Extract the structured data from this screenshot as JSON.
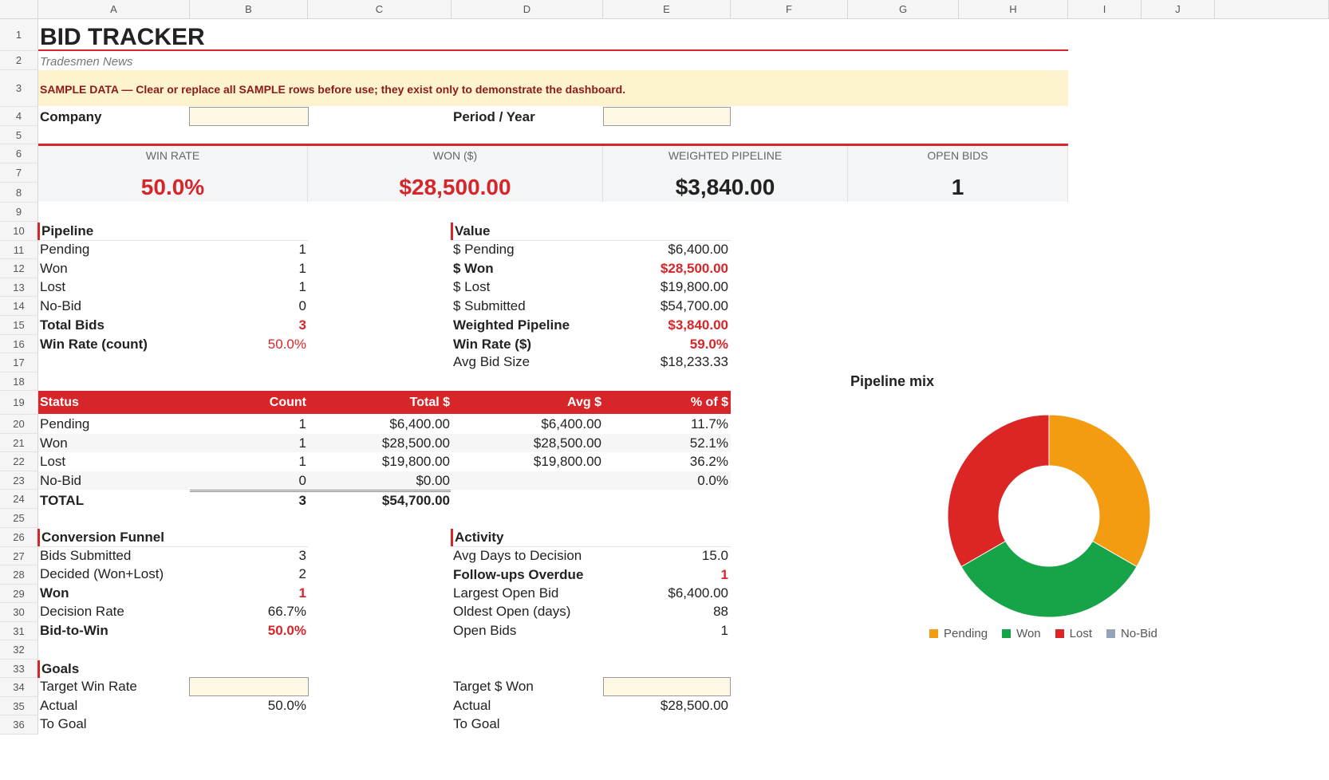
{
  "columns": [
    "A",
    "B",
    "C",
    "D",
    "E",
    "F",
    "G",
    "H",
    "I",
    "J"
  ],
  "rows": [
    "1",
    "2",
    "3",
    "4",
    "5",
    "6",
    "7",
    "8",
    "9",
    "10",
    "11",
    "12",
    "13",
    "14",
    "15",
    "16",
    "17",
    "18",
    "19",
    "20",
    "21",
    "22",
    "23",
    "24",
    "25",
    "26",
    "27",
    "28",
    "29",
    "30",
    "31",
    "32",
    "33",
    "34",
    "35",
    "36"
  ],
  "title": "BID TRACKER",
  "subtitle": "Tradesmen News",
  "banner": "SAMPLE DATA — Clear or replace all SAMPLE rows before use; they exist only to demonstrate the dashboard.",
  "company_label": "Company",
  "period_label": "Period / Year",
  "kpis": [
    {
      "label": "WIN RATE",
      "value": "50.0%"
    },
    {
      "label": "WON ($)",
      "value": "$28,500.00"
    },
    {
      "label": "WEIGHTED PIPELINE",
      "value": "$3,840.00"
    },
    {
      "label": "OPEN BIDS",
      "value": "1"
    }
  ],
  "pipeline": {
    "title": "Pipeline",
    "rows": [
      {
        "label": "Pending",
        "value": "1"
      },
      {
        "label": "Won",
        "value": "1"
      },
      {
        "label": "Lost",
        "value": "1"
      },
      {
        "label": "No-Bid",
        "value": "0"
      },
      {
        "label": "Total Bids",
        "value": "3"
      },
      {
        "label": "Win Rate (count)",
        "value": "50.0%"
      }
    ]
  },
  "value": {
    "title": "Value",
    "rows": [
      {
        "label": "$ Pending",
        "value": "$6,400.00"
      },
      {
        "label": "$ Won",
        "value": "$28,500.00"
      },
      {
        "label": "$ Lost",
        "value": "$19,800.00"
      },
      {
        "label": "$ Submitted",
        "value": "$54,700.00"
      },
      {
        "label": "Weighted Pipeline",
        "value": "$3,840.00"
      },
      {
        "label": "Win Rate ($)",
        "value": "59.0%"
      },
      {
        "label": "Avg Bid Size",
        "value": "$18,233.33"
      }
    ]
  },
  "status_table": {
    "headers": [
      "Status",
      "Count",
      "Total $",
      "Avg $",
      "% of $"
    ],
    "rows": [
      [
        "Pending",
        "1",
        "$6,400.00",
        "$6,400.00",
        "11.7%"
      ],
      [
        "Won",
        "1",
        "$28,500.00",
        "$28,500.00",
        "52.1%"
      ],
      [
        "Lost",
        "1",
        "$19,800.00",
        "$19,800.00",
        "36.2%"
      ],
      [
        "No-Bid",
        "0",
        "$0.00",
        "",
        "0.0%"
      ]
    ],
    "total": [
      "TOTAL",
      "3",
      "$54,700.00"
    ]
  },
  "funnel": {
    "title": "Conversion Funnel",
    "rows": [
      {
        "label": "Bids Submitted",
        "value": "3"
      },
      {
        "label": "Decided (Won+Lost)",
        "value": "2"
      },
      {
        "label": "Won",
        "value": "1"
      },
      {
        "label": "Decision Rate",
        "value": "66.7%"
      },
      {
        "label": "Bid-to-Win",
        "value": "50.0%"
      }
    ]
  },
  "activity": {
    "title": "Activity",
    "rows": [
      {
        "label": "Avg Days to Decision",
        "value": "15.0"
      },
      {
        "label": "Follow-ups Overdue",
        "value": "1"
      },
      {
        "label": "Largest Open Bid",
        "value": "$6,400.00"
      },
      {
        "label": "Oldest Open (days)",
        "value": "88"
      },
      {
        "label": "Open Bids",
        "value": "1"
      }
    ]
  },
  "goals": {
    "title": "Goals",
    "left": [
      {
        "label": "Target Win Rate",
        "value": ""
      },
      {
        "label": "Actual",
        "value": "50.0%"
      },
      {
        "label": "To Goal",
        "value": ""
      }
    ],
    "right": [
      {
        "label": "Target $ Won",
        "value": ""
      },
      {
        "label": "Actual",
        "value": "$28,500.00"
      },
      {
        "label": "To Goal",
        "value": ""
      }
    ]
  },
  "chart_data": {
    "type": "pie",
    "title": "Pipeline mix",
    "categories": [
      "Pending",
      "Won",
      "Lost",
      "No-Bid"
    ],
    "values": [
      1,
      1,
      1,
      0
    ],
    "colors": [
      "#f39c12",
      "#17a348",
      "#dc2626",
      "#94a3b8"
    ],
    "donut": true,
    "legend": "bottom"
  }
}
